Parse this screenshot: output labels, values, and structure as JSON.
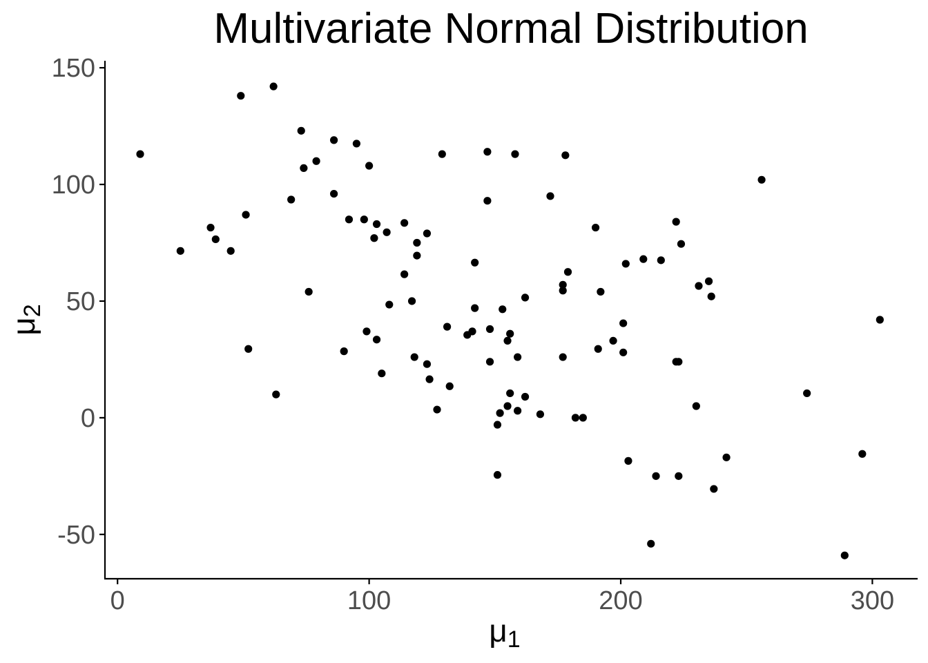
{
  "chart_data": {
    "type": "scatter",
    "title": "Multivariate Normal Distribution",
    "xlabel": "μ",
    "xlabel_sub": "1",
    "ylabel": "μ",
    "ylabel_sub": "2",
    "xlim": [
      -5,
      318
    ],
    "ylim": [
      -69,
      153
    ],
    "xticks": [
      0,
      100,
      200,
      300
    ],
    "xtick_labels": [
      "0",
      "100",
      "200",
      "300"
    ],
    "yticks": [
      -50,
      0,
      50,
      100,
      150
    ],
    "ytick_labels": [
      "-50",
      "0",
      "50",
      "100",
      "150"
    ],
    "grid": false,
    "legend": "none",
    "point_color": "#000000",
    "points": [
      [
        9,
        113
      ],
      [
        25,
        71.5
      ],
      [
        37,
        81.5
      ],
      [
        39,
        76.5
      ],
      [
        45,
        71.5
      ],
      [
        49,
        138
      ],
      [
        51,
        87
      ],
      [
        52,
        29.5
      ],
      [
        62,
        142
      ],
      [
        63,
        10
      ],
      [
        69,
        93.5
      ],
      [
        73,
        123
      ],
      [
        74,
        107
      ],
      [
        76,
        54
      ],
      [
        79,
        110
      ],
      [
        86,
        119
      ],
      [
        86,
        96
      ],
      [
        90,
        28.5
      ],
      [
        92,
        85
      ],
      [
        95,
        117.5
      ],
      [
        98,
        85
      ],
      [
        99,
        37
      ],
      [
        100,
        108
      ],
      [
        102,
        77
      ],
      [
        103,
        83
      ],
      [
        103,
        33.5
      ],
      [
        105,
        19
      ],
      [
        107,
        79.5
      ],
      [
        108,
        48.5
      ],
      [
        114,
        83.5
      ],
      [
        114,
        61.5
      ],
      [
        117,
        50
      ],
      [
        118,
        26
      ],
      [
        119,
        69.5
      ],
      [
        119,
        75
      ],
      [
        123,
        79
      ],
      [
        123,
        23
      ],
      [
        124,
        16.5
      ],
      [
        127,
        3.5
      ],
      [
        129,
        113
      ],
      [
        131,
        39
      ],
      [
        132,
        13.5
      ],
      [
        139,
        35.5
      ],
      [
        141,
        37
      ],
      [
        142,
        66.5
      ],
      [
        142,
        47
      ],
      [
        147,
        93
      ],
      [
        147,
        114
      ],
      [
        148,
        38
      ],
      [
        148,
        24
      ],
      [
        151,
        -3
      ],
      [
        151,
        -24.5
      ],
      [
        152,
        2
      ],
      [
        153,
        46.5
      ],
      [
        155,
        5
      ],
      [
        155,
        33
      ],
      [
        156,
        10.5
      ],
      [
        156,
        36
      ],
      [
        158,
        113
      ],
      [
        159,
        26
      ],
      [
        159,
        3
      ],
      [
        162,
        51.5
      ],
      [
        162,
        9
      ],
      [
        168,
        1.5
      ],
      [
        172,
        95
      ],
      [
        177,
        57
      ],
      [
        177,
        54.5
      ],
      [
        177,
        26
      ],
      [
        178,
        112.5
      ],
      [
        179,
        62.5
      ],
      [
        182,
        0
      ],
      [
        185,
        0
      ],
      [
        190,
        81.5
      ],
      [
        191,
        29.5
      ],
      [
        192,
        54
      ],
      [
        197,
        33
      ],
      [
        201,
        28
      ],
      [
        201,
        40.5
      ],
      [
        202,
        66
      ],
      [
        203,
        -18.5
      ],
      [
        209,
        68
      ],
      [
        212,
        -54
      ],
      [
        214,
        -25
      ],
      [
        216,
        67.5
      ],
      [
        222,
        84
      ],
      [
        222,
        24
      ],
      [
        223,
        24
      ],
      [
        223,
        -25
      ],
      [
        224,
        74.5
      ],
      [
        230,
        5
      ],
      [
        231,
        56.5
      ],
      [
        235,
        58.5
      ],
      [
        236,
        52
      ],
      [
        237,
        -30.5
      ],
      [
        242,
        -17
      ],
      [
        256,
        102
      ],
      [
        274,
        10.5
      ],
      [
        289,
        -59
      ],
      [
        296,
        -15.5
      ],
      [
        303,
        42
      ]
    ]
  }
}
